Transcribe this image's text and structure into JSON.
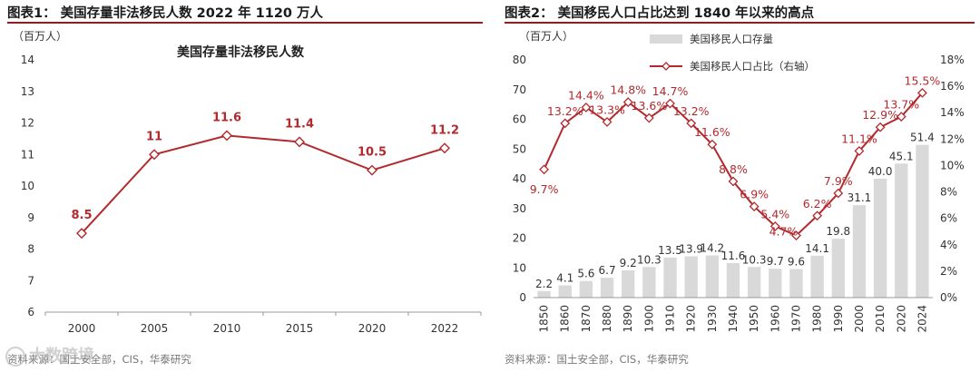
{
  "left_panel": {
    "title": "图表1：  美国存量非法移民人数 2022 年 1120 万人",
    "source": "资料来源：国土安全部，CIS，华泰研究"
  },
  "right_panel": {
    "title": "图表2：  美国移民人口占比达到 1840 年以来的高点",
    "source": "资料来源：国土安全部，CIS，华泰研究"
  },
  "watermark": {
    "text": "大数跨境"
  },
  "chart_data": [
    {
      "type": "line",
      "title": "美国存量非法移民人数",
      "unit_label": "（百万人）",
      "categories": [
        "2000",
        "2005",
        "2010",
        "2015",
        "2020",
        "2022"
      ],
      "values": [
        8.5,
        11,
        11.6,
        11.4,
        10.5,
        11.2
      ],
      "labels": [
        "8.5",
        "11",
        "11.6",
        "11.4",
        "10.5",
        "11.2"
      ],
      "ylim": [
        6,
        14
      ],
      "yticks": [
        "6",
        "7",
        "8",
        "9",
        "10",
        "11",
        "12",
        "13",
        "14"
      ],
      "colors": {
        "line": "#b22a2e",
        "label": "#b22a2e"
      }
    },
    {
      "type": "bar+line",
      "unit_label": "（百万人）",
      "categories": [
        "1850",
        "1860",
        "1870",
        "1880",
        "1890",
        "1900",
        "1910",
        "1920",
        "1930",
        "1940",
        "1950",
        "1960",
        "1970",
        "1980",
        "1990",
        "2000",
        "2010",
        "2020",
        "2024"
      ],
      "series": [
        {
          "name": "美国移民人口存量",
          "kind": "bar",
          "axis": "left",
          "values": [
            2.2,
            4.1,
            5.6,
            6.7,
            9.2,
            10.3,
            13.5,
            13.9,
            14.2,
            11.6,
            10.3,
            9.7,
            9.6,
            14.1,
            19.8,
            31.1,
            40.0,
            45.1,
            51.4
          ],
          "labels": [
            "2.2",
            "4.1",
            "5.6",
            "6.7",
            "9.2",
            "10.3",
            "13.5",
            "13.9",
            "14.2",
            "11.6",
            "10.3",
            "9.7",
            "9.6",
            "14.1",
            "19.8",
            "31.1",
            "40.0",
            "45.1",
            "51.4"
          ]
        },
        {
          "name": "美国移民人口占比（右轴）",
          "kind": "line",
          "axis": "right",
          "values": [
            9.7,
            13.2,
            14.4,
            13.3,
            14.8,
            13.6,
            14.7,
            13.2,
            11.6,
            8.8,
            6.9,
            5.4,
            4.7,
            6.2,
            7.9,
            11.1,
            12.9,
            13.7,
            15.5
          ],
          "labels": [
            "9.7%",
            "13.2%",
            "14.4%",
            "13.3%",
            "14.8%",
            "13.6%",
            "14.7%",
            "13.2%",
            "11.6%",
            "8.8%",
            "6.9%",
            "5.4%",
            "4.7%",
            "6.2%",
            "7.9%",
            "11.1%",
            "12.9%",
            "13.7%",
            "15.5%"
          ]
        }
      ],
      "ylim_left": [
        0,
        80
      ],
      "yticks_left": [
        "0",
        "10",
        "20",
        "30",
        "40",
        "50",
        "60",
        "70",
        "80"
      ],
      "ylim_right": [
        0,
        18
      ],
      "yticks_right": [
        "0%",
        "2%",
        "4%",
        "6%",
        "8%",
        "10%",
        "12%",
        "14%",
        "16%",
        "18%"
      ],
      "colors": {
        "bar": "#d9d9d9",
        "line": "#b22a2e",
        "label": "#b22a2e"
      }
    }
  ]
}
